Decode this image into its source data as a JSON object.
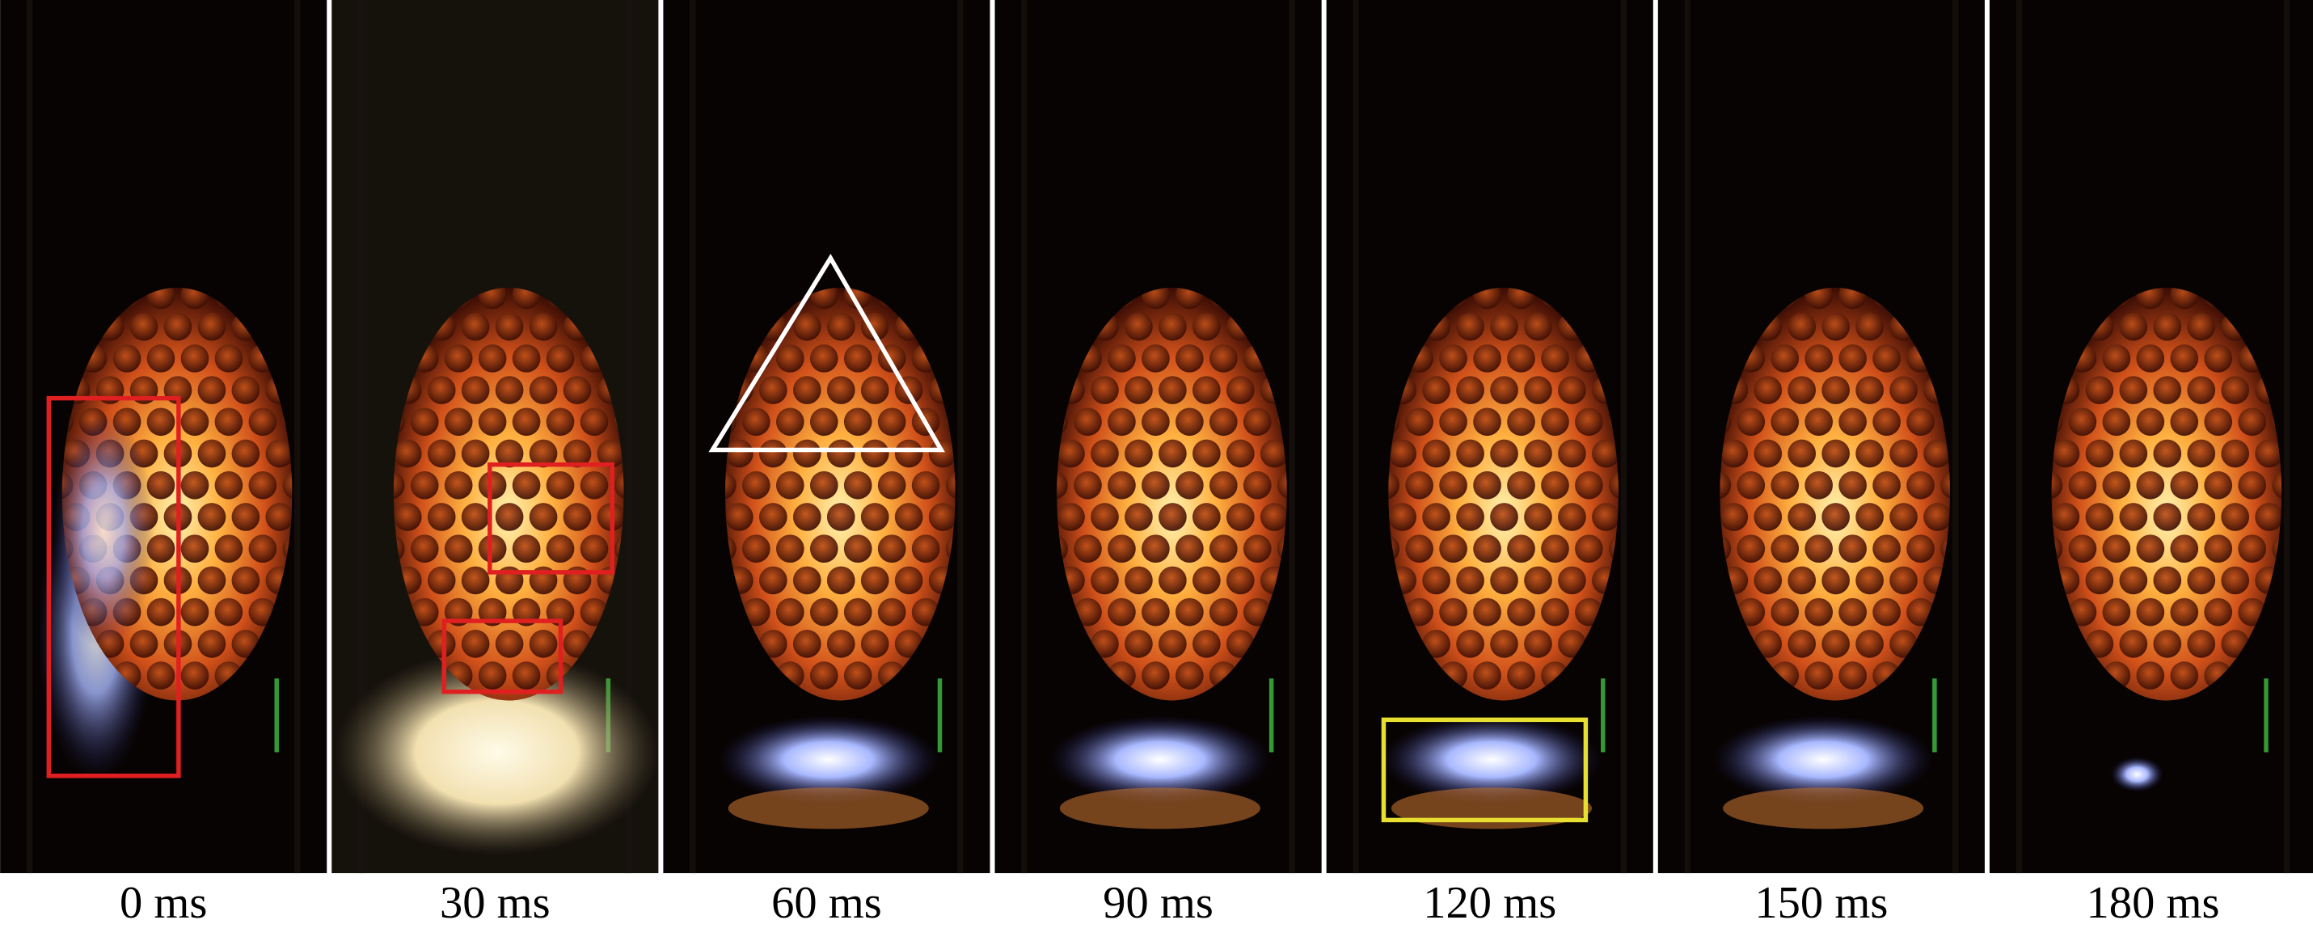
{
  "frames": [
    {
      "label": "0 ms"
    },
    {
      "label": "30 ms"
    },
    {
      "label": "60 ms"
    },
    {
      "label": "90 ms"
    },
    {
      "label": "120 ms"
    },
    {
      "label": "150 ms"
    },
    {
      "label": "180 ms"
    }
  ]
}
